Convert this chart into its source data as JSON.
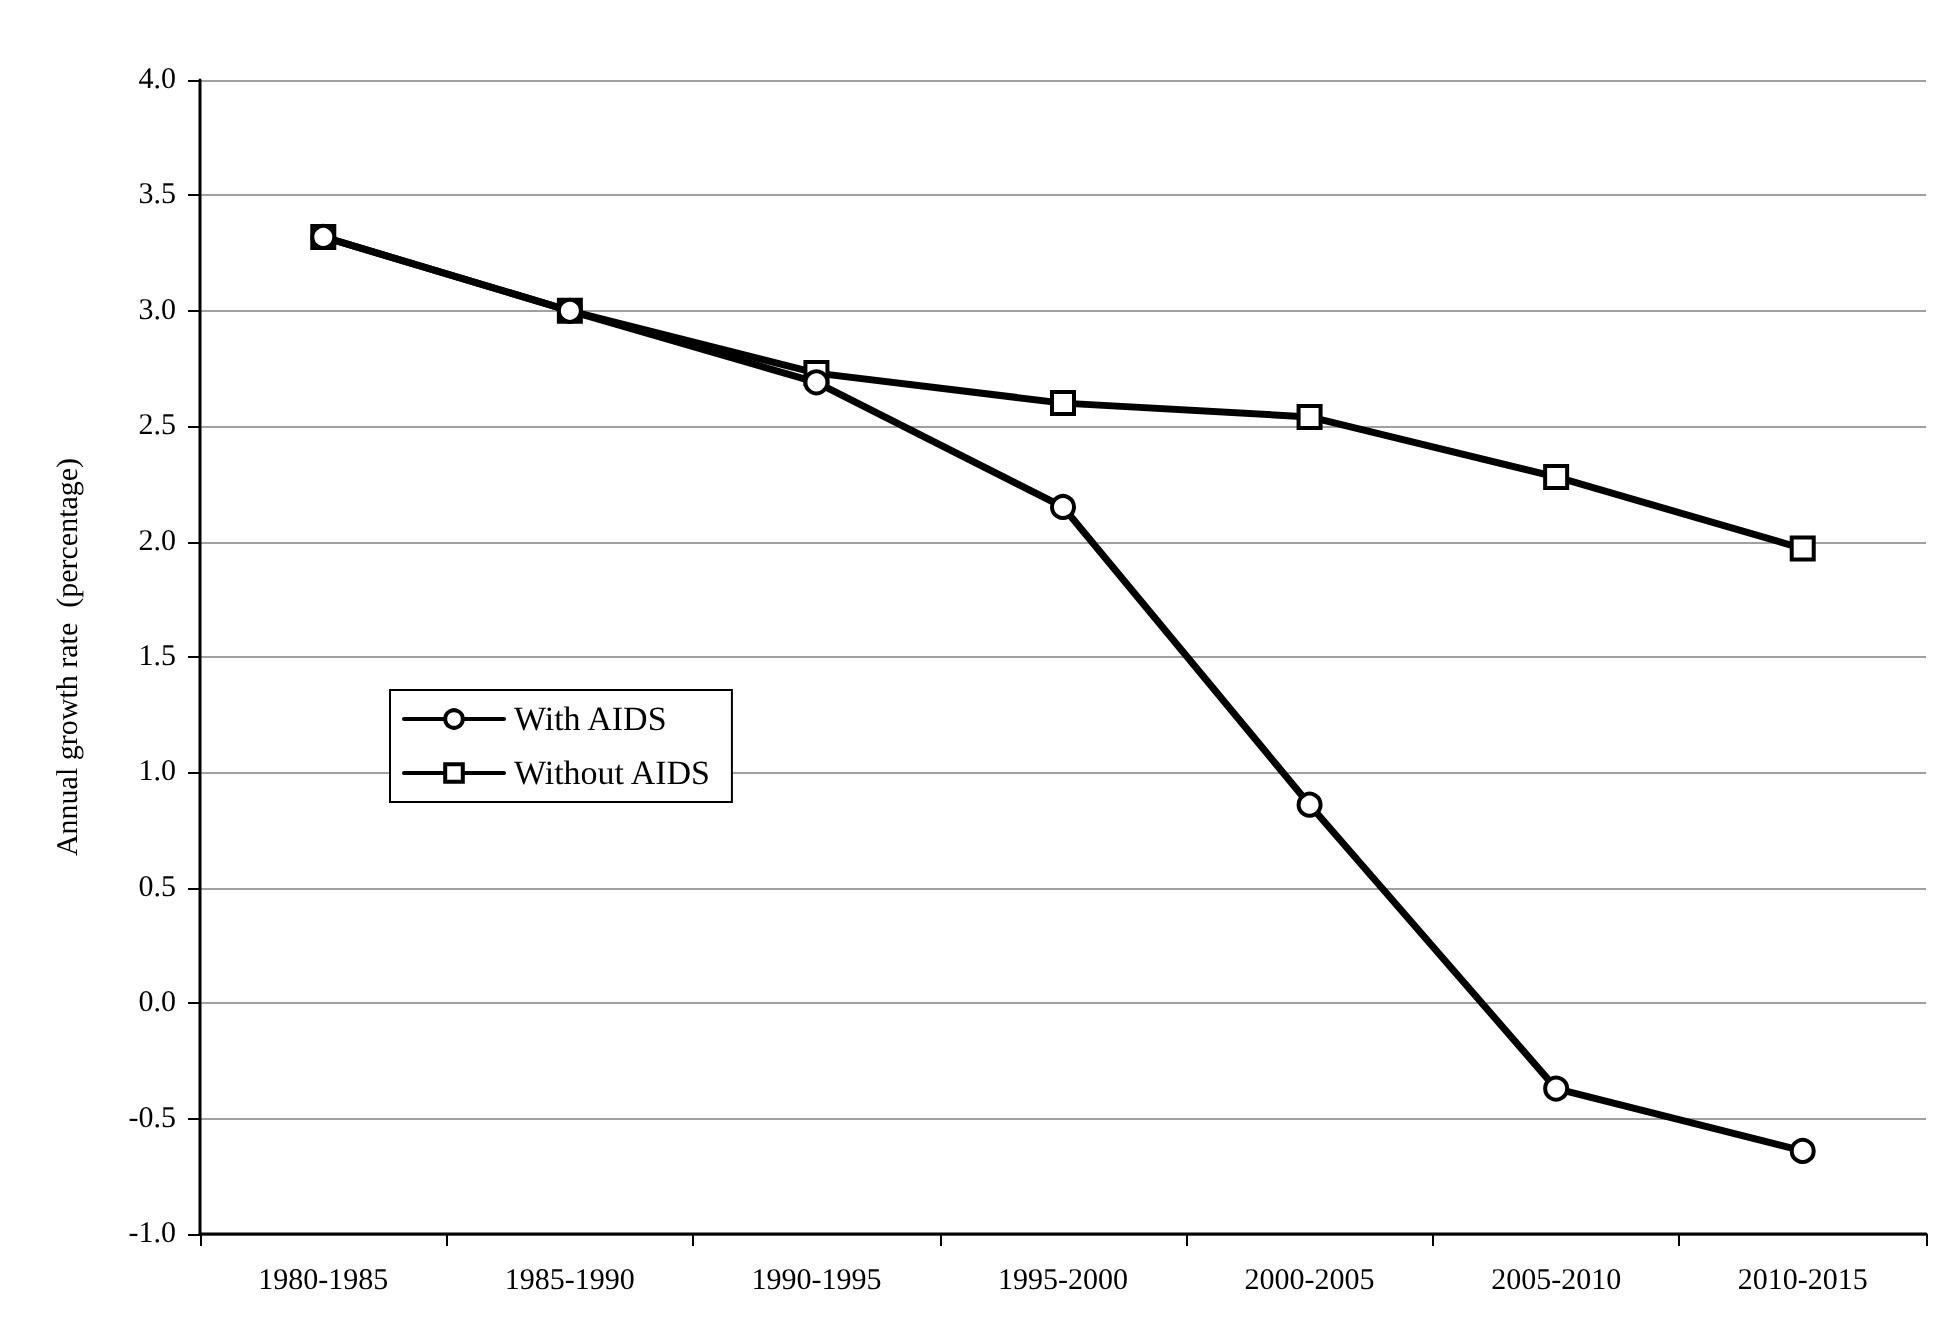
{
  "chart_data": {
    "type": "line",
    "ylabel": "Annual growth rate  (percentage)",
    "categories": [
      "1980-1985",
      "1985-1990",
      "1990-1995",
      "1995-2000",
      "2000-2005",
      "2005-2010",
      "2010-2015"
    ],
    "series": [
      {
        "name": "With AIDS",
        "color": "#000000",
        "marker": "circle",
        "values": [
          3.32,
          3.0,
          2.69,
          2.15,
          0.86,
          -0.37,
          -0.64
        ]
      },
      {
        "name": "Without AIDS",
        "color": "#000000",
        "marker": "square",
        "values": [
          3.32,
          3.0,
          2.73,
          2.6,
          2.54,
          2.28,
          1.97
        ]
      }
    ],
    "ylim": [
      -1.0,
      4.0
    ],
    "yticks": [
      {
        "value": -1,
        "label": "-1.0"
      },
      {
        "value": -0.5,
        "label": "-0.5"
      },
      {
        "value": 0,
        "label": "0.0"
      },
      {
        "value": 0.5,
        "label": "0.5"
      },
      {
        "value": 1,
        "label": "1.0"
      },
      {
        "value": 1.5,
        "label": "1.5"
      },
      {
        "value": 2,
        "label": "2.0"
      },
      {
        "value": 2.5,
        "label": "2.5"
      },
      {
        "value": 3,
        "label": "3.0"
      },
      {
        "value": 3.5,
        "label": "3.5"
      },
      {
        "value": 4,
        "label": "4.0"
      }
    ],
    "grid": "y",
    "legend": "left",
    "line_style": "solid"
  }
}
